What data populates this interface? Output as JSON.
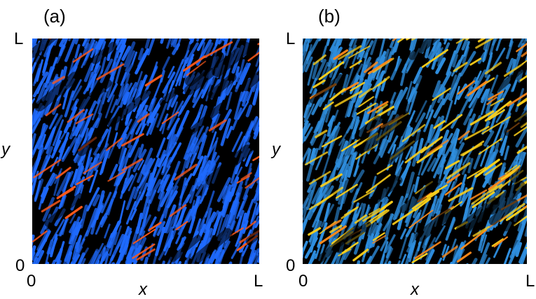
{
  "panels": [
    {
      "id": "a",
      "tag": "(a)",
      "y_axis_letter": "y",
      "x_axis_letter": "x",
      "y_top": "L",
      "origin_y": "0",
      "origin_x": "0",
      "x_right": "L",
      "colors": {
        "background": "#000000",
        "primary": "#1f6bff",
        "accent": "#ff5a1a"
      }
    },
    {
      "id": "b",
      "tag": "(b)",
      "y_axis_letter": "y",
      "x_axis_letter": "x",
      "y_top": "L",
      "origin_y": "0",
      "origin_x": "0",
      "x_right": "L",
      "colors": {
        "background": "#000000",
        "primary": "#2f8fe0",
        "accent": "#ffd21a",
        "accent2": "#ff8a1a"
      }
    }
  ]
}
